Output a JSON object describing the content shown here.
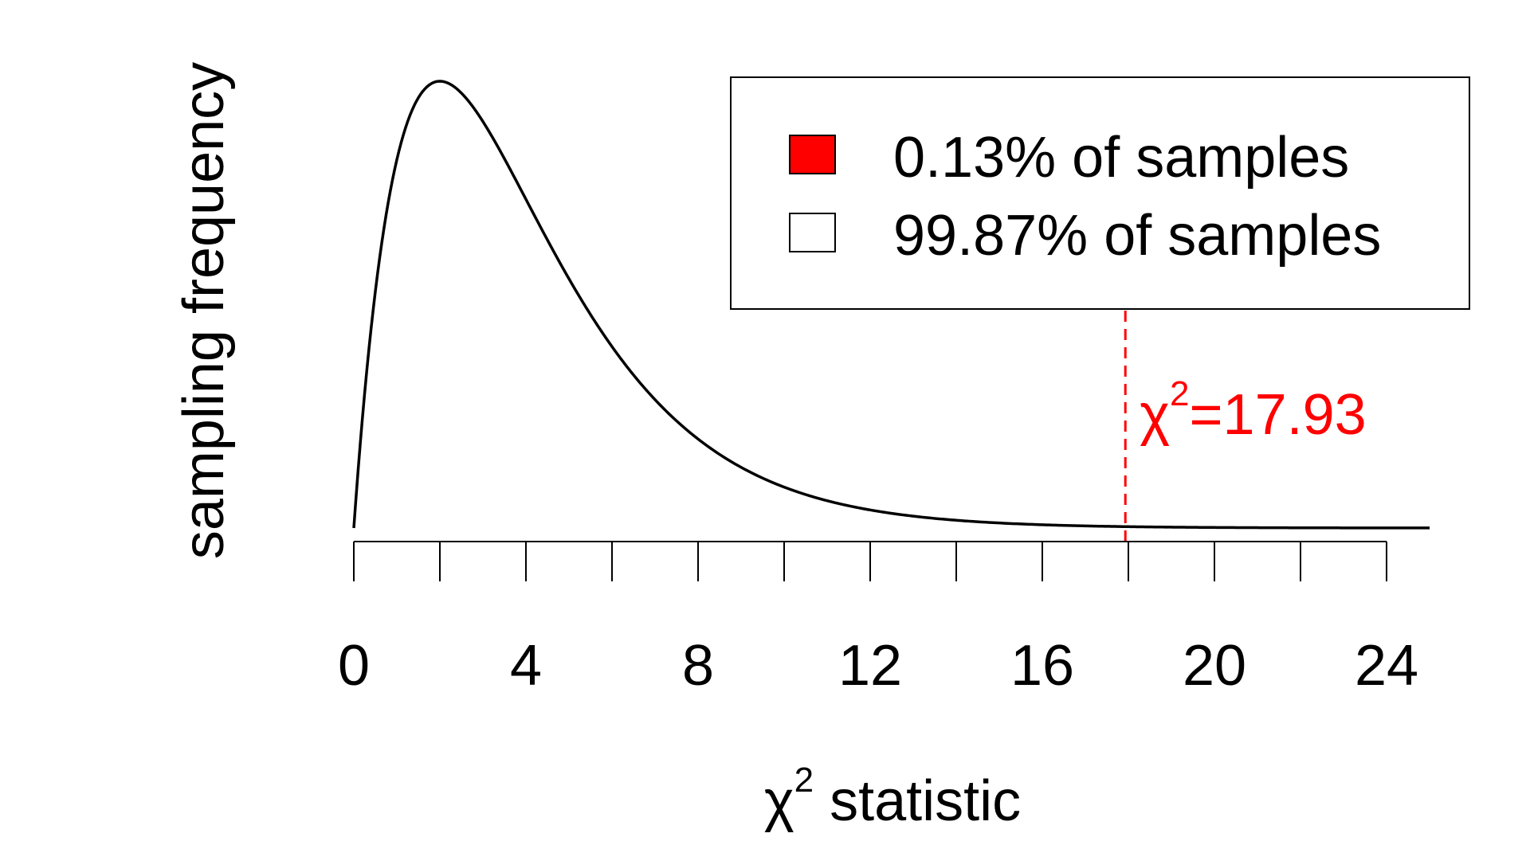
{
  "chart_data": {
    "type": "area",
    "title": "",
    "xlabel_symbol": "χ",
    "xlabel_superscript": "2",
    "xlabel_rest": " statistic",
    "ylabel": "sampling frequency",
    "xlim": [
      0,
      25
    ],
    "x_ticks": [
      0,
      2,
      4,
      6,
      8,
      10,
      12,
      14,
      16,
      18,
      20,
      22,
      24
    ],
    "x_tick_labels": [
      {
        "x": 0,
        "label": "0"
      },
      {
        "x": 4,
        "label": "4"
      },
      {
        "x": 8,
        "label": "8"
      },
      {
        "x": 12,
        "label": "12"
      },
      {
        "x": 16,
        "label": "16"
      },
      {
        "x": 20,
        "label": "20"
      },
      {
        "x": 24,
        "label": "24"
      }
    ],
    "y_axis_shown": false,
    "grid": false,
    "distribution": "chi-squared",
    "degrees_of_freedom": 4,
    "curve_color": "#000000",
    "critical_value": 17.93,
    "critical_label_symbol": "χ",
    "critical_label_superscript": "2",
    "critical_label_rest": "=17.93",
    "critical_color": "#ff0000",
    "shaded_region": {
      "from": 17.93,
      "to": 25,
      "color": "#ff0000"
    },
    "legend_position": "top-right",
    "legend": [
      {
        "label": "0.13% of samples",
        "fill": "#ff0000"
      },
      {
        "label": "99.87% of samples",
        "fill": "#ffffff"
      }
    ]
  }
}
